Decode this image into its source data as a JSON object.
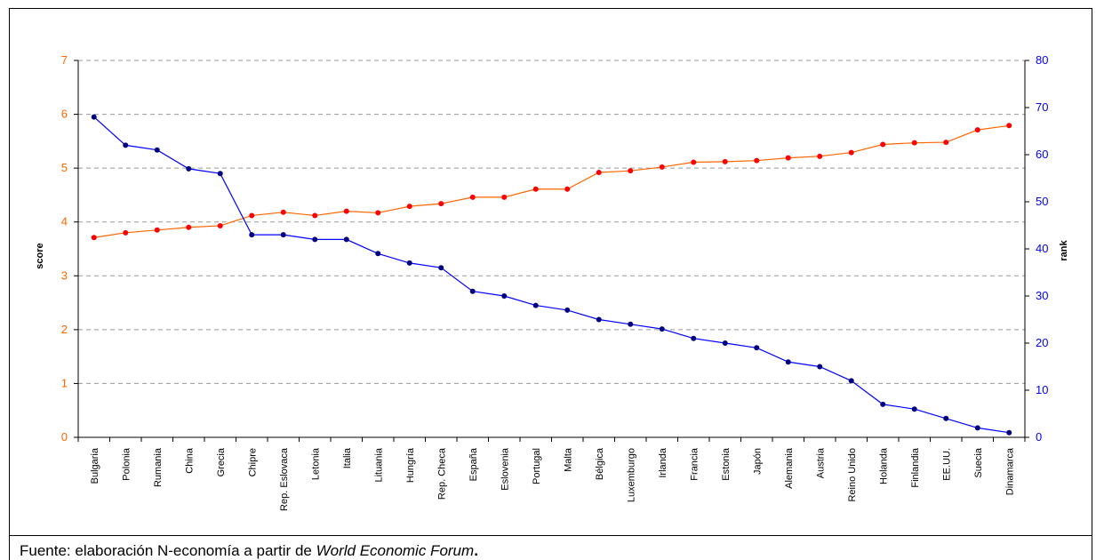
{
  "chart_data": {
    "type": "line",
    "categories": [
      "Bulgaria",
      "Polonia",
      "Rumania",
      "China",
      "Grecia",
      "Chipre",
      "Rep. Eslovaca",
      "Letonia",
      "Italia",
      "Lituania",
      "Hungría",
      "Rep. Checa",
      "España",
      "Eslovenia",
      "Portugal",
      "Malta",
      "Bélgica",
      "Luxemburgo",
      "Irlanda",
      "Francia",
      "Estonia",
      "Japón",
      "Alemania",
      "Austria",
      "Reino Unido",
      "Holanda",
      "Finlandia",
      "EE.UU.",
      "Suecia",
      "Dinamarca"
    ],
    "series": [
      {
        "axis": "left",
        "color": "#ff0000",
        "line_color": "#ff6600",
        "values": [
          3.71,
          3.8,
          3.85,
          3.9,
          3.93,
          4.12,
          4.18,
          4.12,
          4.2,
          4.17,
          4.29,
          4.34,
          4.46,
          4.46,
          4.61,
          4.61,
          4.92,
          4.95,
          5.02,
          5.11,
          5.12,
          5.14,
          5.19,
          5.22,
          5.29,
          5.44,
          5.47,
          5.48,
          5.71,
          5.79
        ]
      },
      {
        "axis": "right",
        "color": "#000080",
        "line_color": "#0000ff",
        "values": [
          68,
          62,
          61,
          57,
          56,
          43,
          43,
          42,
          42,
          39,
          37,
          36,
          31,
          30,
          28,
          27,
          25,
          24,
          23,
          21,
          20,
          19,
          16,
          15,
          12,
          7,
          6,
          4,
          2,
          1
        ]
      }
    ],
    "ylabel": "score",
    "y2label": "rank",
    "ylim": [
      0,
      7
    ],
    "y2lim": [
      0,
      80
    ],
    "yticks": [
      "0",
      "1",
      "2",
      "3",
      "4",
      "5",
      "6",
      "7"
    ],
    "y2ticks": [
      "0",
      "10",
      "20",
      "30",
      "40",
      "50",
      "60",
      "70",
      "80"
    ],
    "left_axis_color": "#ff6600",
    "right_axis_color": "#0000ff",
    "grid": true
  },
  "footer": {
    "prefix": "Fuente: elaboración N-economía a partir de ",
    "source": "World Economic Forum",
    "suffix": "."
  }
}
